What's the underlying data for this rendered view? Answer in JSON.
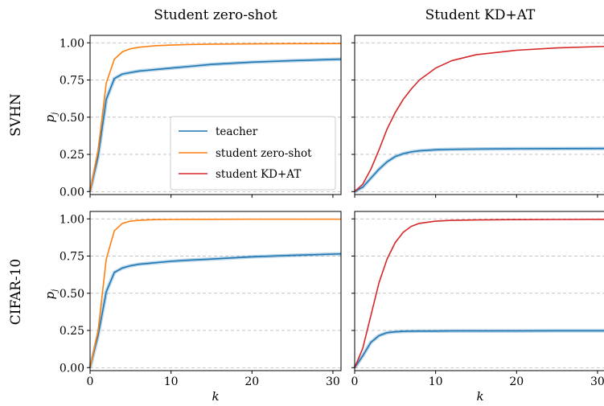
{
  "chart_data": {
    "type": "line",
    "col_titles": [
      "Student zero-shot",
      "Student KD+AT"
    ],
    "row_titles": [
      "SVHN",
      "CIFAR-10"
    ],
    "xlabel": "k",
    "ylabel": "p",
    "ylabel_sub": "j",
    "xlim": [
      0,
      31
    ],
    "ylim": [
      -0.02,
      1.05
    ],
    "xticks": [
      0,
      10,
      20,
      30
    ],
    "yticks": [
      0.0,
      0.25,
      0.5,
      0.75,
      1.0
    ],
    "ytick_labels": [
      "0.00",
      "0.25",
      "0.50",
      "0.75",
      "1.00"
    ],
    "grid": true,
    "legend": {
      "placement": "lower-right of top-left panel",
      "entries": [
        {
          "label": "teacher",
          "color": "#1f77b4"
        },
        {
          "label": "student zero-shot",
          "color": "#ff7f0e"
        },
        {
          "label": "student KD+AT",
          "color": "#d62728"
        }
      ]
    },
    "x": [
      0,
      1,
      2,
      3,
      4,
      5,
      6,
      7,
      8,
      10,
      12,
      15,
      20,
      25,
      31
    ],
    "panels": [
      {
        "row": "SVHN",
        "col": "Student zero-shot",
        "series": [
          {
            "name": "teacher",
            "color": "#1f77b4",
            "values": [
              0.0,
              0.24,
              0.62,
              0.76,
              0.79,
              0.8,
              0.81,
              0.815,
              0.82,
              0.83,
              0.84,
              0.855,
              0.87,
              0.88,
              0.89
            ]
          },
          {
            "name": "student zero-shot",
            "color": "#ff7f0e",
            "values": [
              0.0,
              0.28,
              0.73,
              0.89,
              0.94,
              0.96,
              0.97,
              0.975,
              0.98,
              0.985,
              0.988,
              0.991,
              0.993,
              0.994,
              0.995
            ]
          }
        ]
      },
      {
        "row": "SVHN",
        "col": "Student KD+AT",
        "series": [
          {
            "name": "teacher",
            "color": "#1f77b4",
            "values": [
              0.0,
              0.03,
              0.09,
              0.15,
              0.2,
              0.235,
              0.255,
              0.267,
              0.274,
              0.281,
              0.284,
              0.286,
              0.288,
              0.289,
              0.29
            ]
          },
          {
            "name": "student KD+AT",
            "color": "#d62728",
            "values": [
              0.0,
              0.05,
              0.15,
              0.28,
              0.42,
              0.53,
              0.62,
              0.69,
              0.75,
              0.83,
              0.88,
              0.92,
              0.95,
              0.966,
              0.976
            ]
          }
        ]
      },
      {
        "row": "CIFAR-10",
        "col": "Student zero-shot",
        "series": [
          {
            "name": "teacher",
            "color": "#1f77b4",
            "values": [
              0.0,
              0.22,
              0.51,
              0.64,
              0.67,
              0.685,
              0.695,
              0.7,
              0.705,
              0.715,
              0.722,
              0.73,
              0.745,
              0.755,
              0.765
            ]
          },
          {
            "name": "student zero-shot",
            "color": "#ff7f0e",
            "values": [
              0.0,
              0.25,
              0.73,
              0.92,
              0.97,
              0.985,
              0.99,
              0.993,
              0.995,
              0.996,
              0.997,
              0.997,
              0.998,
              0.998,
              0.998
            ]
          }
        ]
      },
      {
        "row": "CIFAR-10",
        "col": "Student KD+AT",
        "series": [
          {
            "name": "teacher",
            "color": "#1f77b4",
            "values": [
              0.0,
              0.08,
              0.17,
              0.215,
              0.235,
              0.241,
              0.244,
              0.245,
              0.246,
              0.246,
              0.247,
              0.247,
              0.247,
              0.248,
              0.248
            ]
          },
          {
            "name": "student KD+AT",
            "color": "#d62728",
            "values": [
              0.0,
              0.13,
              0.35,
              0.57,
              0.73,
              0.84,
              0.91,
              0.95,
              0.97,
              0.985,
              0.99,
              0.993,
              0.995,
              0.996,
              0.997
            ]
          }
        ]
      }
    ]
  }
}
